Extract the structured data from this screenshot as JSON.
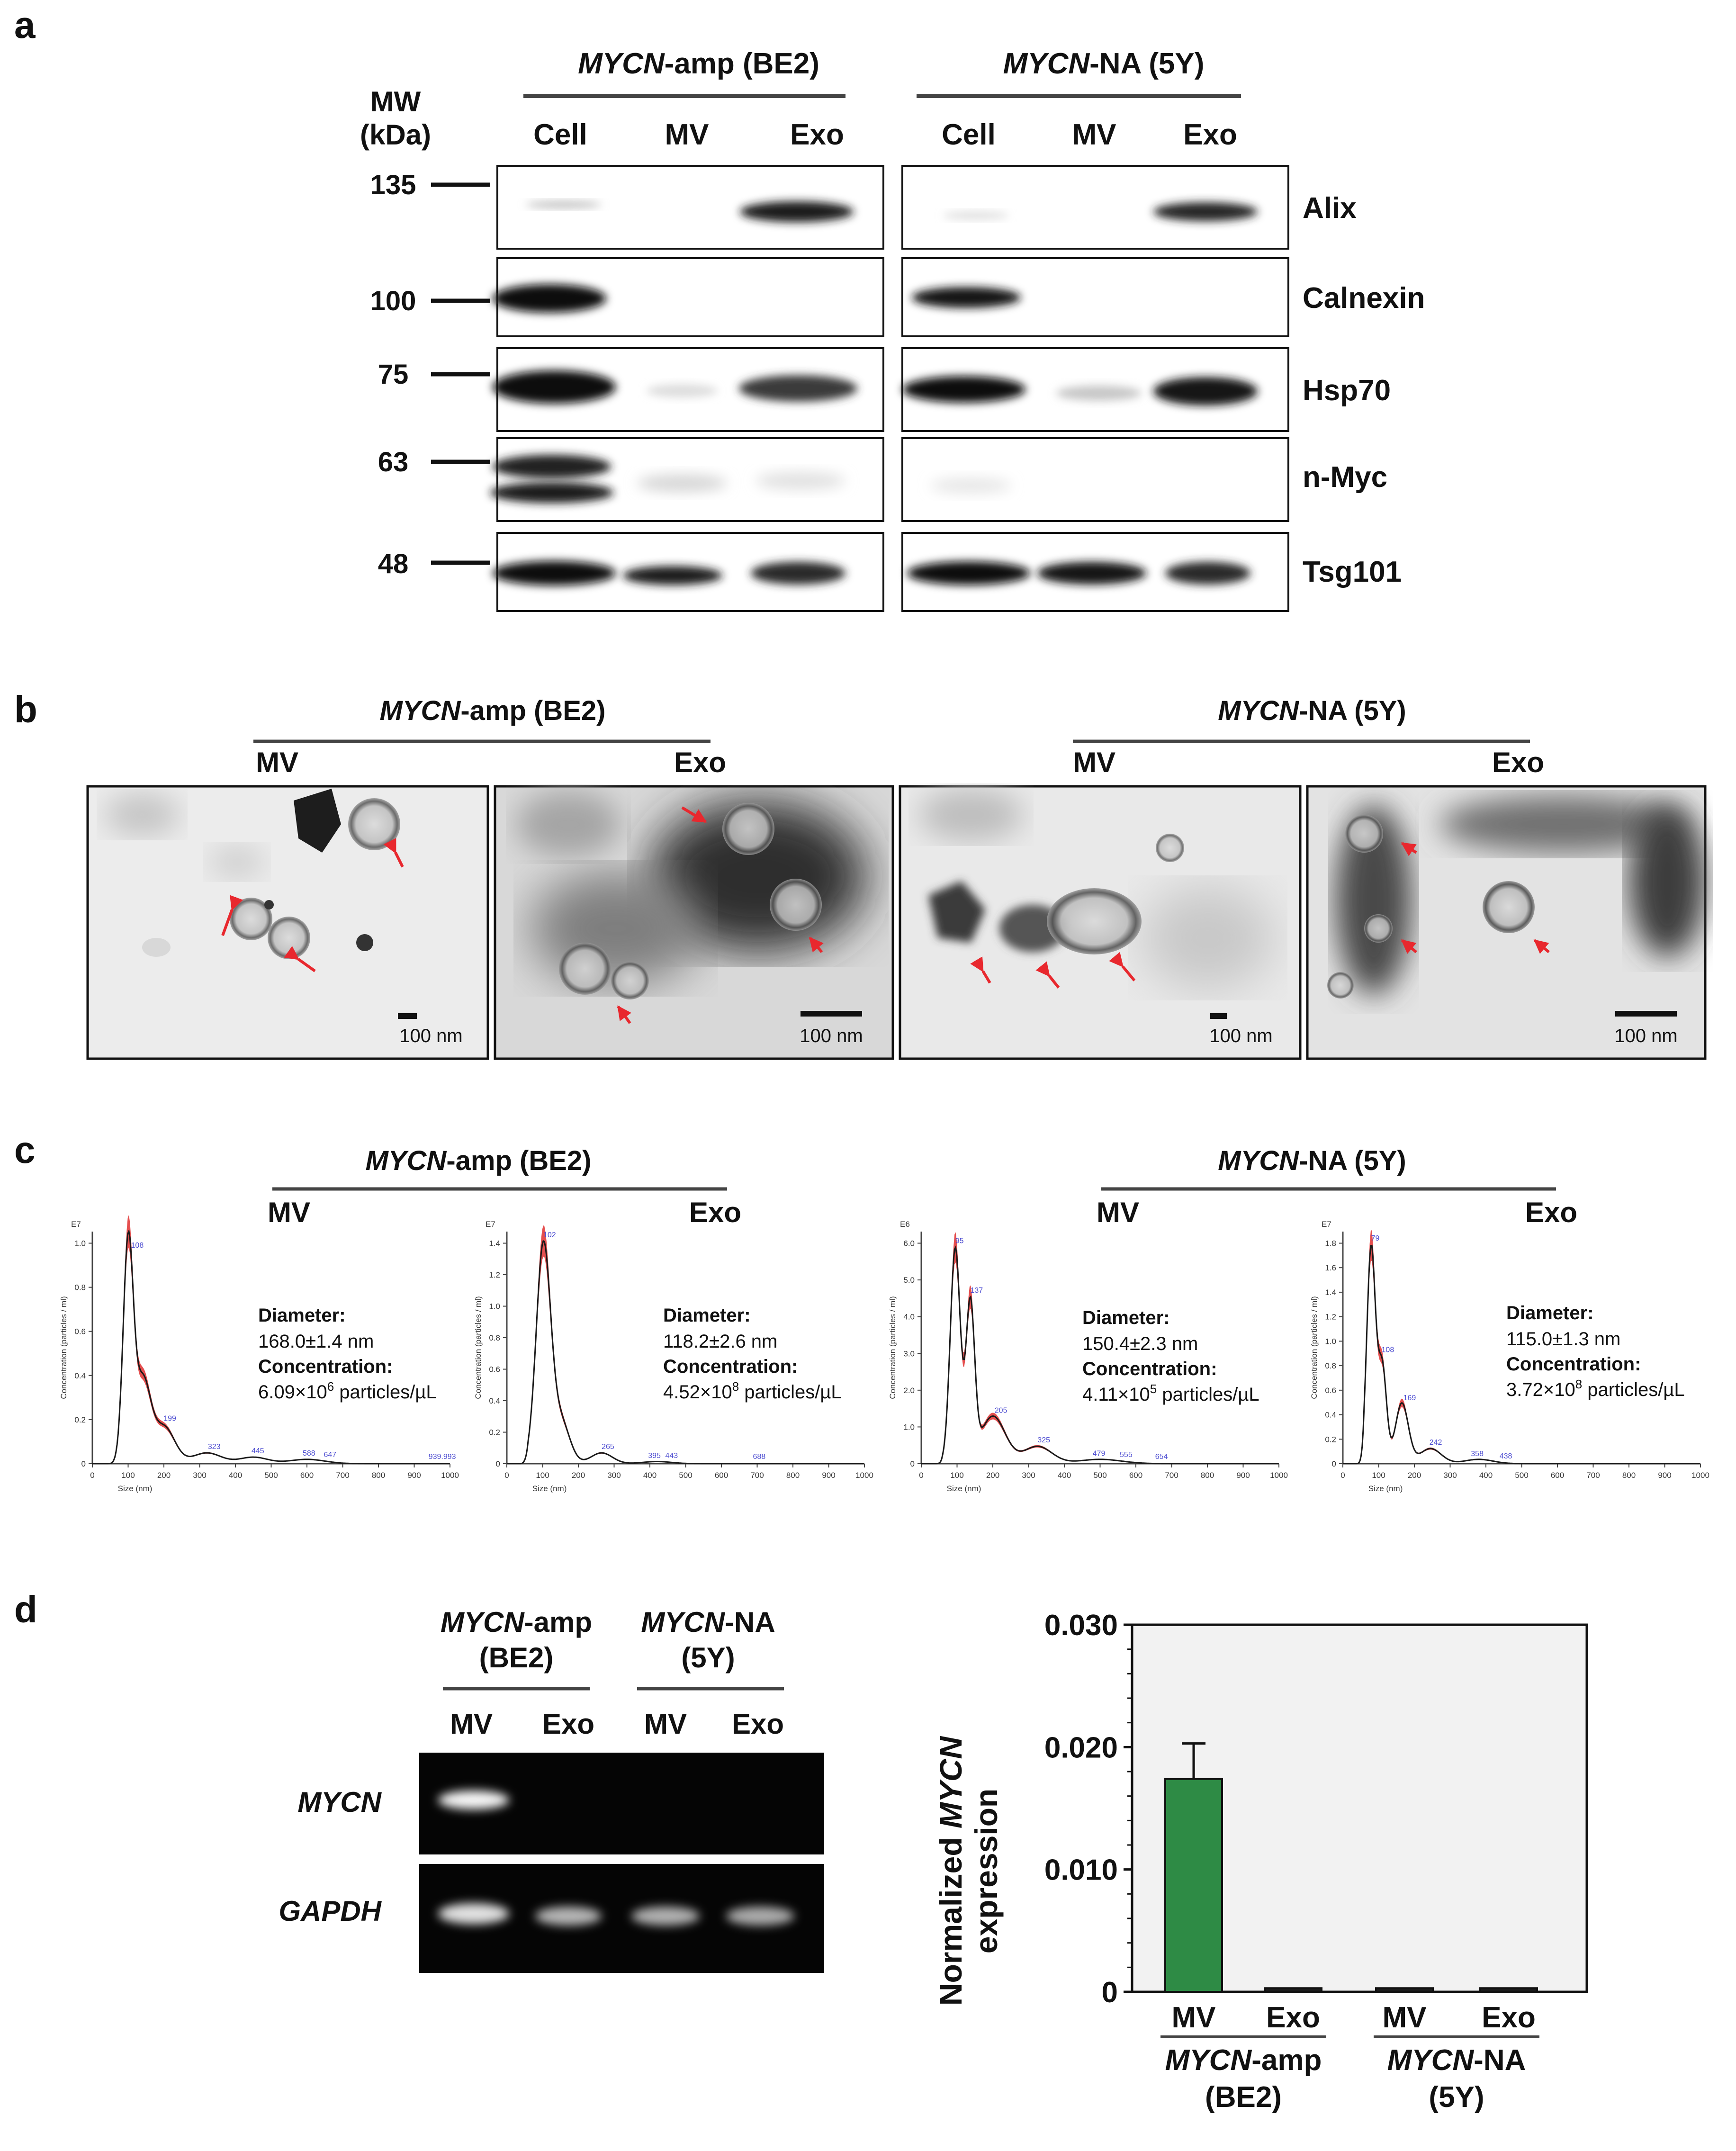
{
  "panels": {
    "a": {
      "letter": "a",
      "mw_title": [
        "MW",
        "(kDa)"
      ],
      "group1": {
        "name_italic": "MYCN",
        "name_rest": "-amp (BE2)"
      },
      "group2": {
        "name_italic": "MYCN",
        "name_rest": "-NA (5Y)"
      },
      "lanes": [
        "Cell",
        "MV",
        "Exo"
      ],
      "mw_markers": [
        "135",
        "100",
        "75",
        "63",
        "48"
      ],
      "proteins": [
        "Alix",
        "Calnexin",
        "Hsp70",
        "n-Myc",
        "Tsg101"
      ]
    },
    "b": {
      "letter": "b",
      "group1": {
        "name_italic": "MYCN",
        "name_rest": "-amp (BE2)"
      },
      "group2": {
        "name_italic": "MYCN",
        "name_rest": "-NA (5Y)"
      },
      "sublabels": [
        "MV",
        "Exo",
        "MV",
        "Exo"
      ],
      "scale": "100 nm"
    },
    "c": {
      "letter": "c",
      "group1": {
        "name_italic": "MYCN",
        "name_rest": "-amp (BE2)"
      },
      "group2": {
        "name_italic": "MYCN",
        "name_rest": "-NA (5Y)"
      },
      "ylabel": "Concentration (particles / ml)",
      "xlabel": "Size (nm)",
      "xticks": [
        "0",
        "100",
        "200",
        "300",
        "400",
        "500",
        "600",
        "700",
        "800",
        "900",
        "1000"
      ],
      "diameter_label": "Diameter:",
      "concentration_label": "Concentration:",
      "plots": [
        {
          "title": "MV",
          "exp": "E7",
          "yticks": [
            "0",
            "0.2",
            "0.4",
            "0.6",
            "0.8",
            "1.0"
          ],
          "diameter": "168.0±1.4 nm",
          "conc_base": "6.09×10",
          "conc_exp": "6",
          "conc_unit": " particles/µL",
          "peaks": [
            "108",
            "199",
            "323",
            "445",
            "588",
            "647",
            "939.993"
          ]
        },
        {
          "title": "Exo",
          "exp": "E7",
          "yticks": [
            "0",
            "0.2",
            "0.4",
            "0.6",
            "0.8",
            "1.0",
            "1.2",
            "1.4"
          ],
          "diameter": "118.2±2.6 nm",
          "conc_base": "4.52×10",
          "conc_exp": "8",
          "conc_unit": " particles/µL",
          "peaks": [
            "102",
            "265",
            "395",
            "443",
            "688"
          ]
        },
        {
          "title": "MV",
          "exp": "E6",
          "yticks": [
            "0",
            "1.0",
            "2.0",
            "3.0",
            "4.0",
            "5.0",
            "6.0"
          ],
          "diameter": "150.4±2.3 nm",
          "conc_base": "4.11×10",
          "conc_exp": "5",
          "conc_unit": " particles/µL",
          "peaks": [
            "95",
            "137",
            "205",
            "325",
            "479",
            "555",
            "654"
          ]
        },
        {
          "title": "Exo",
          "exp": "E7",
          "yticks": [
            "0",
            "0.2",
            "0.4",
            "0.6",
            "0.8",
            "1.0",
            "1.2",
            "1.4",
            "1.6",
            "1.8"
          ],
          "diameter": "115.0±1.3 nm",
          "conc_base": "3.72×10",
          "conc_exp": "8",
          "conc_unit": " particles/µL",
          "peaks": [
            "79",
            "108",
            "169",
            "242",
            "358",
            "438"
          ]
        }
      ]
    },
    "d": {
      "letter": "d",
      "group1": {
        "line1_italic": "MYCN",
        "line1_rest": "-amp",
        "line2": "(BE2)"
      },
      "group2": {
        "line1_italic": "MYCN",
        "line1_rest": "-NA",
        "line2": "(5Y)"
      },
      "lanes": [
        "MV",
        "Exo",
        "MV",
        "Exo"
      ],
      "genes": [
        "MYCN",
        "GAPDH"
      ],
      "ylabel_pre": "Normalized ",
      "ylabel_italic": "MYCN",
      "ylabel_line2": "expression"
    }
  },
  "chart_data": {
    "type": "bar",
    "categories": [
      "MV",
      "Exo",
      "MV",
      "Exo"
    ],
    "groups": [
      {
        "label_italic": "MYCN",
        "label_rest": "-amp",
        "label_line2": "(BE2)"
      },
      {
        "label_italic": "MYCN",
        "label_rest": "-NA",
        "label_line2": "(5Y)"
      }
    ],
    "values": [
      0.0174,
      0.0003,
      0.0003,
      0.0003
    ],
    "errors": [
      0.0029,
      0,
      0,
      0
    ],
    "ylim": [
      0,
      0.03
    ],
    "yticks": [
      "0",
      "0.010",
      "0.020",
      "0.030"
    ],
    "ytick_values": [
      0,
      0.01,
      0.02,
      0.03
    ],
    "colors": {
      "bar": "#2e8b45",
      "plot_bg": "#f2f2f2"
    }
  }
}
